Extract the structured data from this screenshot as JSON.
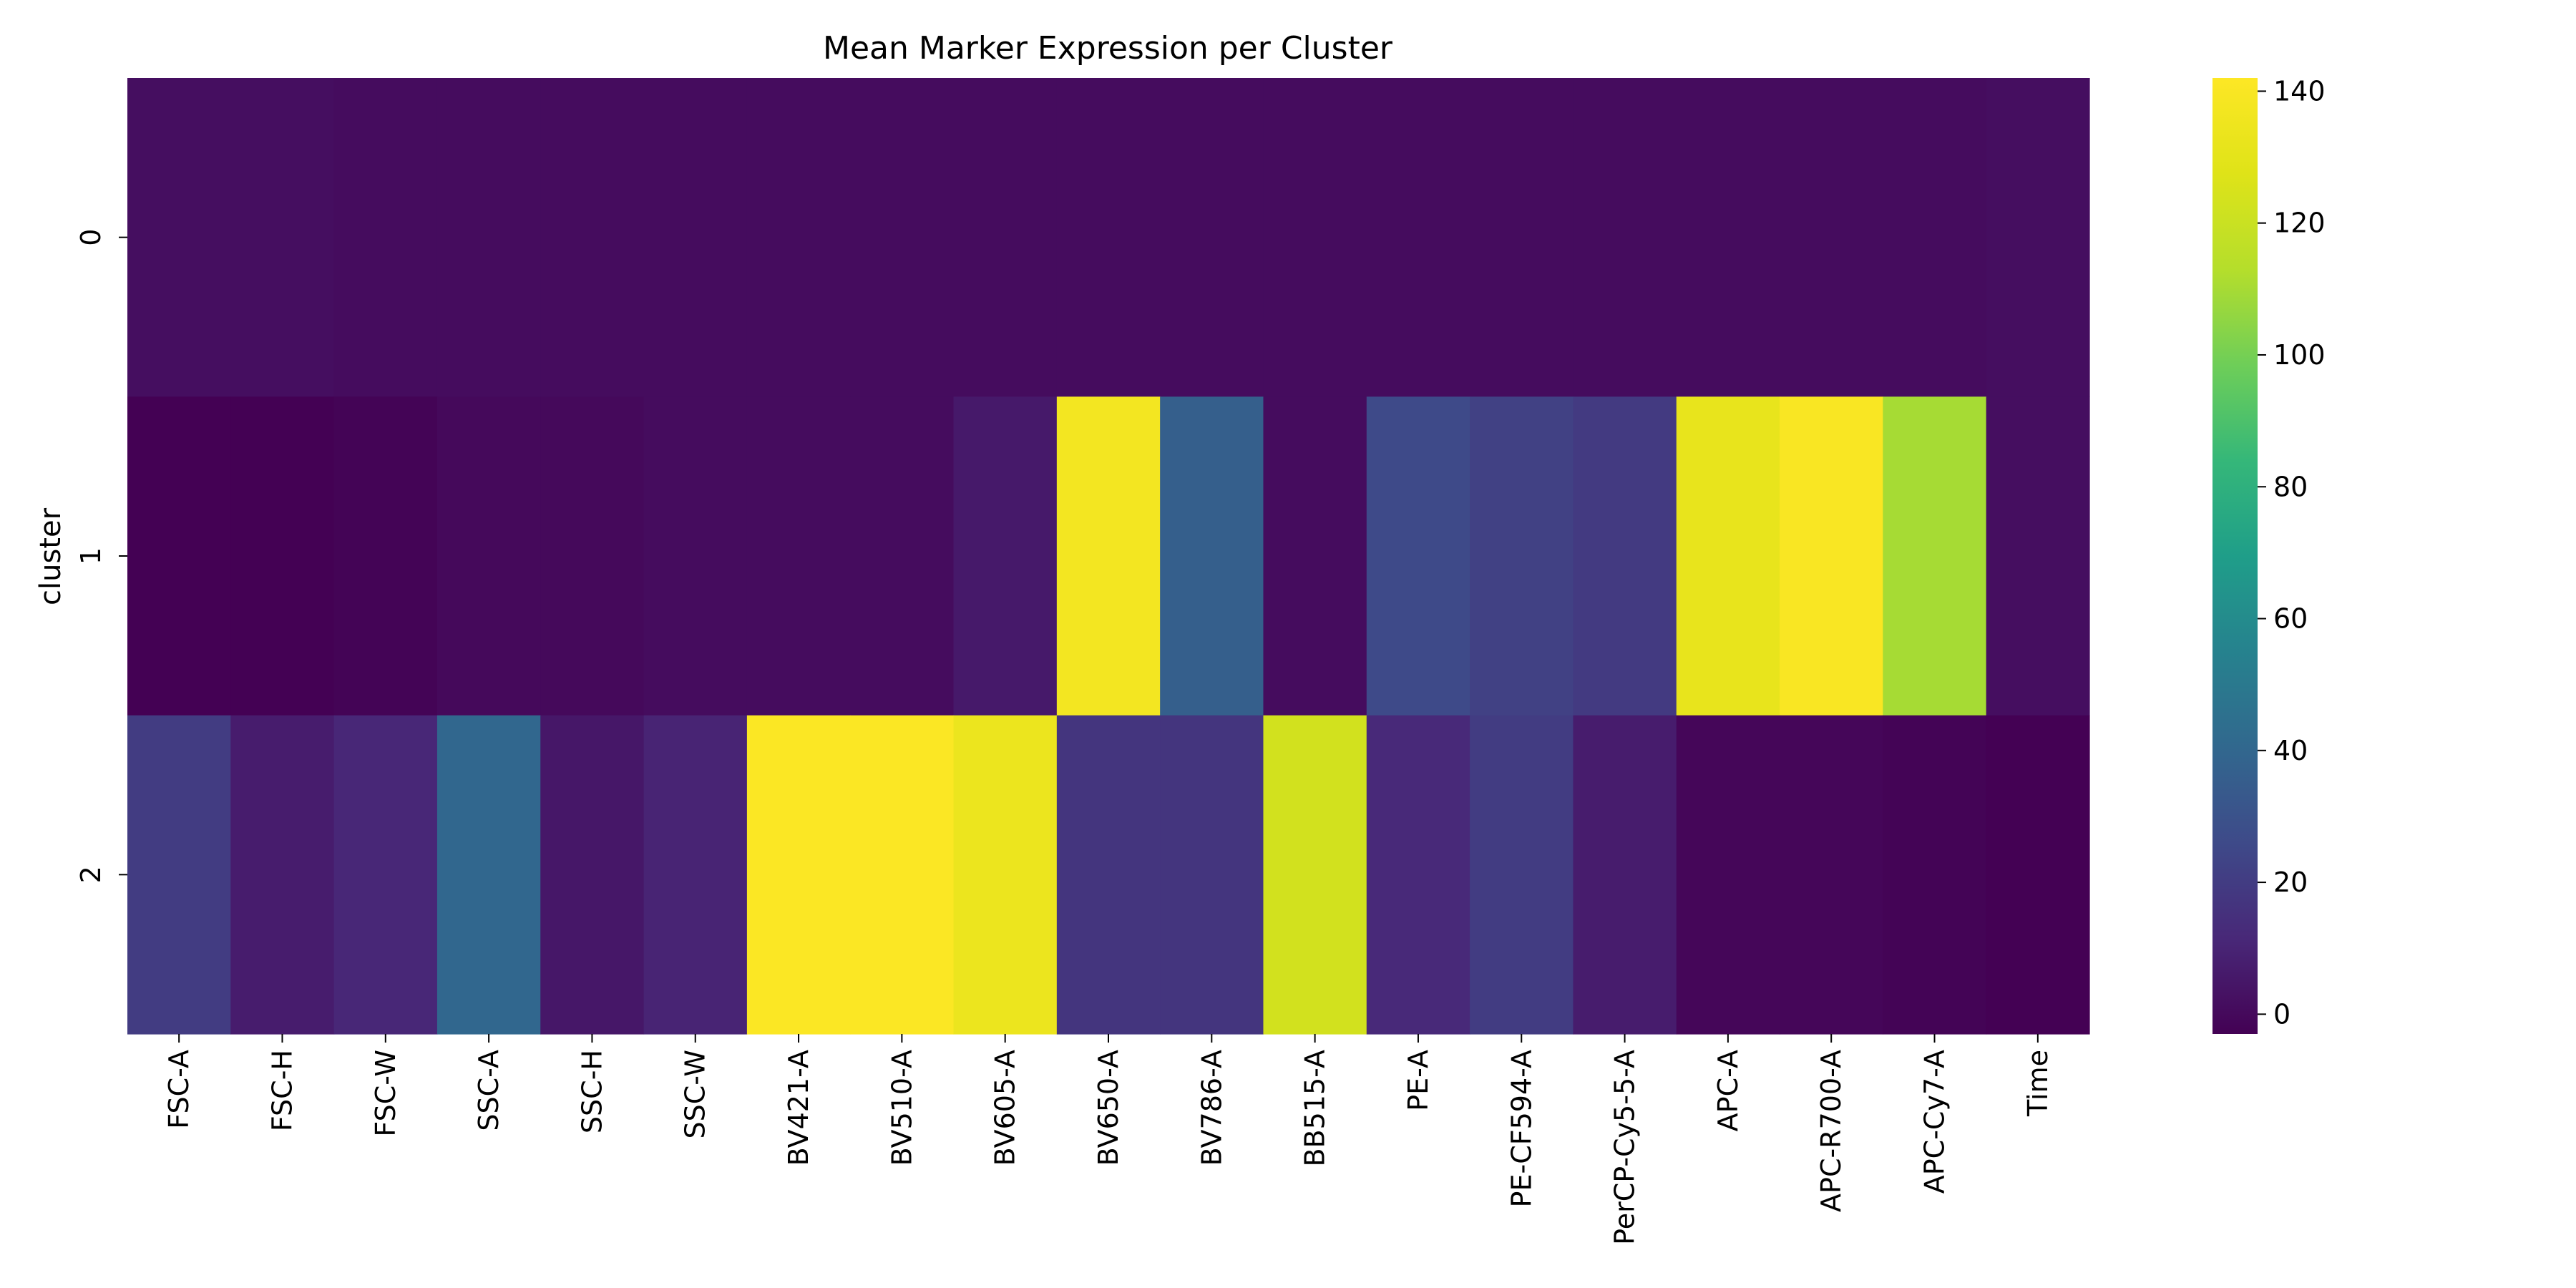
{
  "chart_data": {
    "type": "heatmap",
    "title": "Mean Marker Expression per Cluster",
    "xlabel": "",
    "ylabel": "cluster",
    "rows": [
      "0",
      "1",
      "2"
    ],
    "columns": [
      "FSC-A",
      "FSC-H",
      "FSC-W",
      "SSC-A",
      "SSC-H",
      "SSC-W",
      "BV421-A",
      "BV510-A",
      "BV605-A",
      "BV650-A",
      "BV786-A",
      "BB515-A",
      "PE-A",
      "PE-CF594-A",
      "PerCP-Cy5-5-A",
      "APC-A",
      "APC-R700-A",
      "APC-Cy7-A",
      "Time"
    ],
    "values": [
      [
        2,
        2,
        1,
        1,
        1,
        1,
        1,
        1,
        1,
        1,
        1,
        1,
        1,
        1,
        1,
        1,
        1,
        1,
        2
      ],
      [
        -3,
        -3,
        -2,
        0,
        0,
        1,
        1,
        1,
        6,
        137,
        36,
        1,
        26,
        22,
        19,
        132,
        140,
        110,
        2
      ],
      [
        20,
        7,
        11,
        40,
        5,
        10,
        141,
        141,
        134,
        17,
        17,
        123,
        12,
        20,
        7,
        -1,
        -1,
        -2,
        -3
      ]
    ],
    "colormap": "viridis",
    "vmin": -3,
    "vmax": 142,
    "colorbar_ticks": [
      0,
      20,
      40,
      60,
      80,
      100,
      120,
      140
    ]
  }
}
